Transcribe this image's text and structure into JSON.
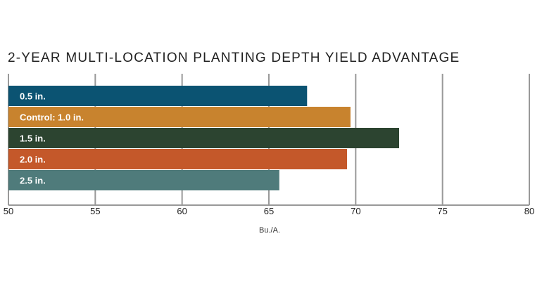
{
  "chart_data": {
    "type": "bar",
    "orientation": "horizontal",
    "title": "2-YEAR MULTI-LOCATION PLANTING DEPTH YIELD ADVANTAGE",
    "xlabel": "Bu./A.",
    "ylabel": "",
    "xlim": [
      50,
      80
    ],
    "xticks": [
      50,
      55,
      60,
      65,
      70,
      75,
      80
    ],
    "grid": true,
    "categories": [
      "0.5 in.",
      "Control: 1.0 in.",
      "1.5 in.",
      "2.0 in.",
      "2.5 in."
    ],
    "values": [
      67.2,
      69.7,
      72.5,
      69.5,
      65.6
    ],
    "colors": [
      "#0b5372",
      "#c8832e",
      "#2c4430",
      "#c4582a",
      "#4f7b7b"
    ]
  }
}
